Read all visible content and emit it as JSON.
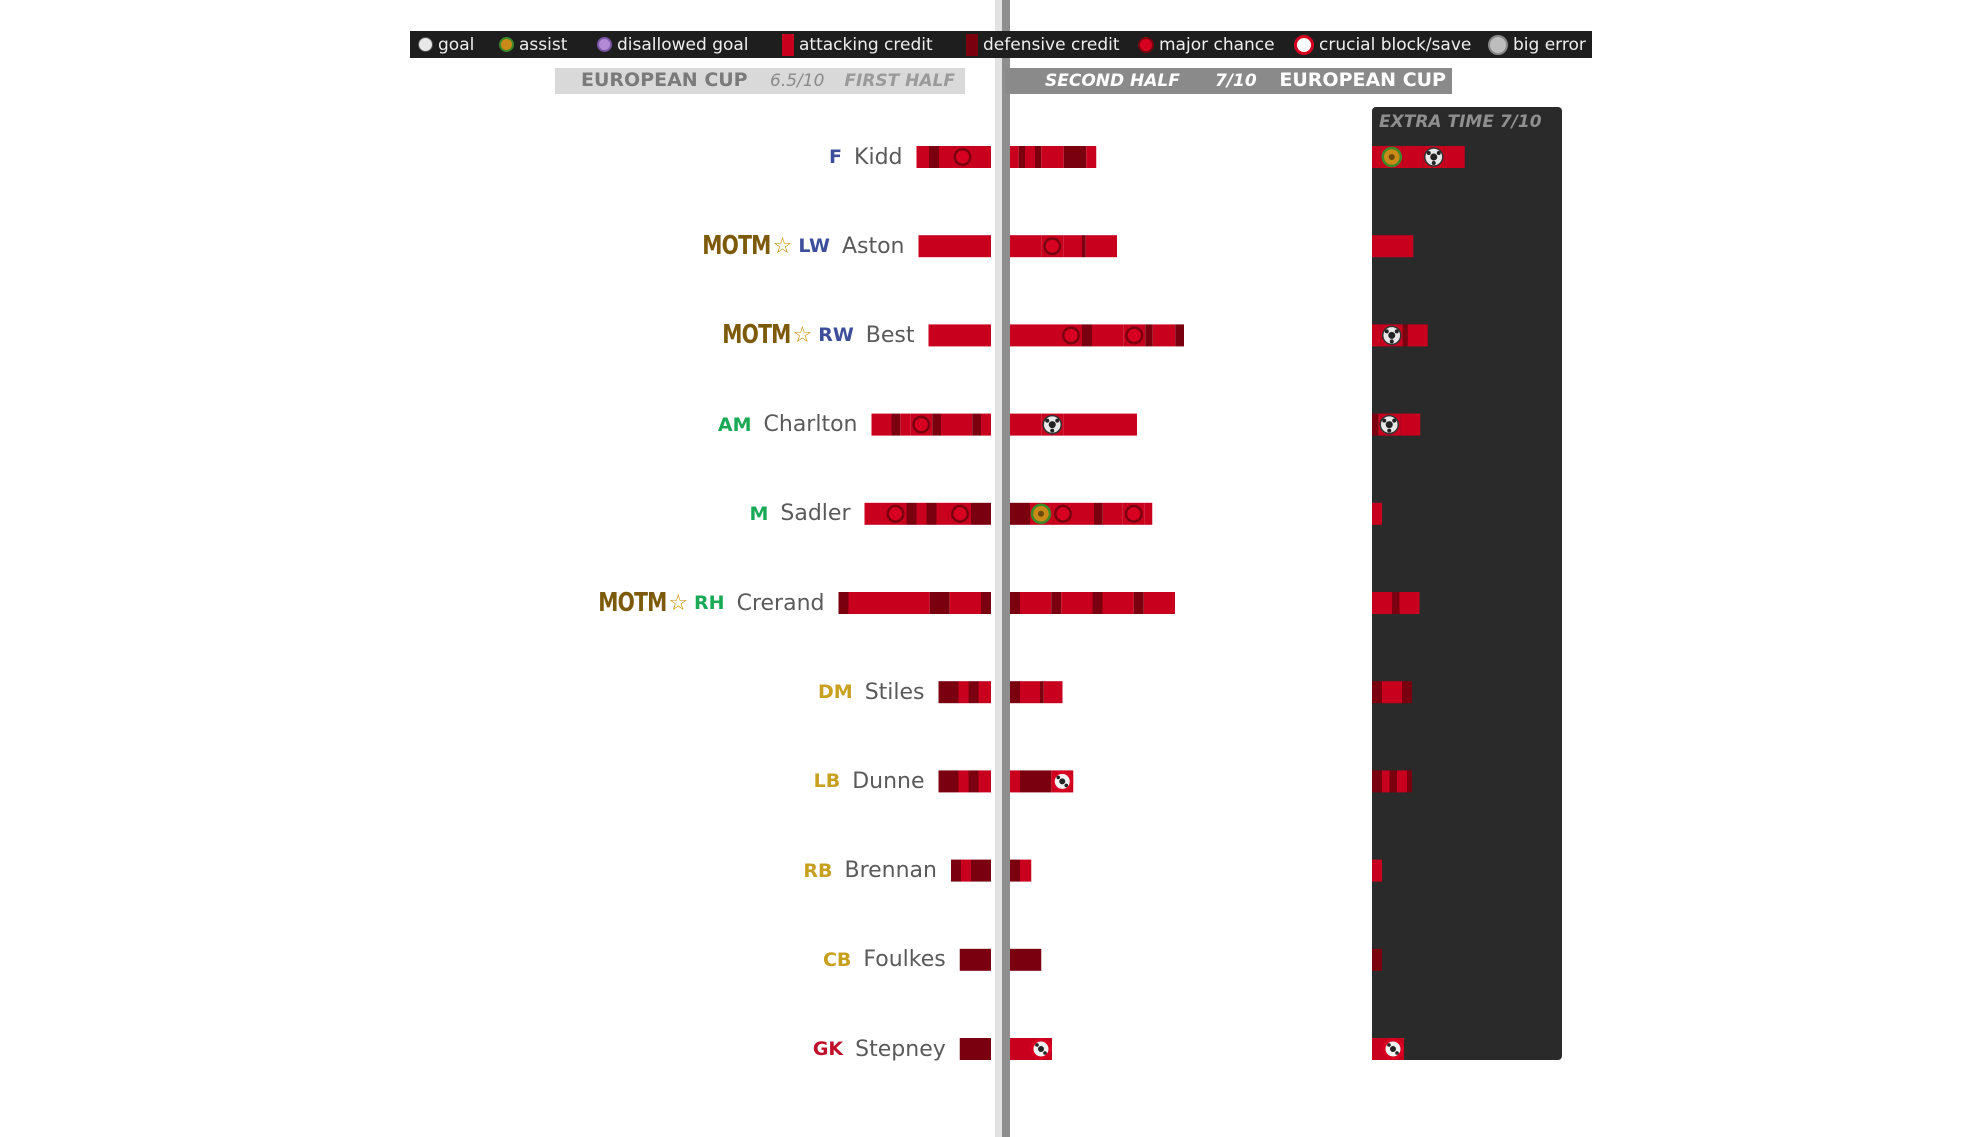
{
  "legend": [
    {
      "key": "goal",
      "label": "goal",
      "color": "#e8e8e8"
    },
    {
      "key": "assist",
      "label": "assist",
      "color": "#c98a18"
    },
    {
      "key": "disallowed",
      "label": "disallowed goal",
      "color": "#b28ad6"
    },
    {
      "key": "att",
      "label": "attacking credit",
      "color": "#c8001e"
    },
    {
      "key": "def",
      "label": "defensive credit",
      "color": "#7a0010"
    },
    {
      "key": "chance",
      "label": "major chance",
      "color": "#d80020"
    },
    {
      "key": "block",
      "label": "crucial block/save",
      "color": "#d80020"
    },
    {
      "key": "error",
      "label": "big error",
      "color": "#bdbdbd"
    }
  ],
  "header": {
    "left_competition": "EUROPEAN CUP",
    "left_rating": "6.5/10",
    "left_half": "FIRST HALF",
    "right_half": "SECOND HALF",
    "right_rating": "7/10",
    "right_competition": "EUROPEAN CUP",
    "extra_time": "EXTRA TIME 7/10"
  },
  "colors": {
    "attacking": "#c8001e",
    "defensive": "#7a0010",
    "forward_pos": "#3d4f9a",
    "midfield_pos": "#1aaa55",
    "defence_pos": "#c8a020",
    "gk_pos": "#c0102a",
    "motm": "#7d5a0a"
  },
  "chart_data": {
    "type": "bar",
    "motm_label": "MOTM",
    "players": [
      {
        "pos": "F",
        "name": "Kidd",
        "motm": false,
        "pos_color": "#3d4f9a",
        "first_half": [
          [
            "a",
            1.0
          ],
          [
            "d",
            0.8
          ],
          [
            "a",
            1.0
          ],
          [
            "chance"
          ],
          [
            "a",
            1.4
          ]
        ],
        "second_half": [
          [
            "a",
            0.7
          ],
          [
            "d",
            0.5
          ],
          [
            "a",
            0.8
          ],
          [
            "d",
            0.5
          ],
          [
            "a",
            1.8
          ],
          [
            "d",
            1.8
          ],
          [
            "a",
            0.8
          ]
        ],
        "extra_time": [
          [
            "a",
            0.7
          ],
          [
            "assist"
          ],
          [
            "a",
            1.6
          ],
          [
            "goal"
          ],
          [
            "a",
            1.6
          ]
        ]
      },
      {
        "pos": "LW",
        "name": "Aston",
        "motm": true,
        "pos_color": "#3d4f9a",
        "first_half": [
          [
            "a",
            5.8
          ]
        ],
        "second_half": [
          [
            "a",
            2.5
          ],
          [
            "chance"
          ],
          [
            "a",
            1.5
          ],
          [
            "d",
            0.3
          ],
          [
            "a",
            2.5
          ]
        ],
        "extra_time": [
          [
            "a",
            3.3
          ]
        ]
      },
      {
        "pos": "RW",
        "name": "Best",
        "motm": true,
        "pos_color": "#3d4f9a",
        "first_half": [
          [
            "a",
            5.0
          ]
        ],
        "second_half": [
          [
            "a",
            4.0
          ],
          [
            "chance"
          ],
          [
            "d",
            0.8
          ],
          [
            "a",
            2.5
          ],
          [
            "chance"
          ],
          [
            "d",
            0.6
          ],
          [
            "a",
            1.8
          ],
          [
            "d",
            0.7
          ]
        ],
        "extra_time": [
          [
            "a",
            0.7
          ],
          [
            "goal"
          ],
          [
            "d",
            0.4
          ],
          [
            "a",
            1.6
          ]
        ]
      },
      {
        "pos": "AM",
        "name": "Charlton",
        "motm": false,
        "pos_color": "#1aaa55",
        "first_half": [
          [
            "a",
            1.6
          ],
          [
            "d",
            0.7
          ],
          [
            "a",
            0.8
          ],
          [
            "chance"
          ],
          [
            "d",
            0.7
          ],
          [
            "a",
            2.5
          ],
          [
            "d",
            0.7
          ],
          [
            "a",
            0.8
          ]
        ],
        "second_half": [
          [
            "a",
            2.5
          ],
          [
            "goal"
          ],
          [
            "a",
            5.9
          ]
        ],
        "extra_time": [
          [
            "d",
            0.5
          ],
          [
            "goal"
          ],
          [
            "a",
            1.6
          ]
        ]
      },
      {
        "pos": "M",
        "name": "Sadler",
        "motm": false,
        "pos_color": "#1aaa55",
        "first_half": [
          [
            "a",
            1.6
          ],
          [
            "chance"
          ],
          [
            "d",
            0.8
          ],
          [
            "a",
            0.8
          ],
          [
            "d",
            0.8
          ],
          [
            "a",
            1.0
          ],
          [
            "chance"
          ],
          [
            "d",
            1.6
          ]
        ],
        "second_half": [
          [
            "d",
            1.6
          ],
          [
            "assist"
          ],
          [
            "chance"
          ],
          [
            "a",
            1.6
          ],
          [
            "d",
            0.7
          ],
          [
            "a",
            1.6
          ],
          [
            "chance"
          ],
          [
            "a",
            0.6
          ]
        ],
        "extra_time": [
          [
            "a",
            0.8
          ]
        ]
      },
      {
        "pos": "RH",
        "name": "Crerand",
        "motm": true,
        "pos_color": "#1aaa55",
        "first_half": [
          [
            "d",
            0.8
          ],
          [
            "a",
            6.5
          ],
          [
            "d",
            1.6
          ],
          [
            "a",
            2.5
          ],
          [
            "d",
            0.8
          ]
        ],
        "second_half": [
          [
            "d",
            0.8
          ],
          [
            "a",
            2.5
          ],
          [
            "d",
            0.8
          ],
          [
            "a",
            2.5
          ],
          [
            "d",
            0.8
          ],
          [
            "a",
            2.5
          ],
          [
            "d",
            0.8
          ],
          [
            "a",
            2.5
          ]
        ],
        "extra_time": [
          [
            "a",
            1.6
          ],
          [
            "d",
            0.6
          ],
          [
            "a",
            1.6
          ]
        ]
      },
      {
        "pos": "DM",
        "name": "Stiles",
        "motm": false,
        "pos_color": "#c8a020",
        "first_half": [
          [
            "d",
            1.6
          ],
          [
            "a",
            0.8
          ],
          [
            "d",
            0.8
          ],
          [
            "a",
            1.0
          ]
        ],
        "second_half": [
          [
            "d",
            0.8
          ],
          [
            "a",
            1.6
          ],
          [
            "d",
            0.3
          ],
          [
            "a",
            1.5
          ]
        ],
        "extra_time": [
          [
            "d",
            0.8
          ],
          [
            "a",
            1.6
          ],
          [
            "d",
            0.8
          ]
        ]
      },
      {
        "pos": "LB",
        "name": "Dunne",
        "motm": false,
        "pos_color": "#c8a020",
        "first_half": [
          [
            "d",
            1.6
          ],
          [
            "a",
            0.8
          ],
          [
            "d",
            0.8
          ],
          [
            "a",
            1.0
          ]
        ],
        "second_half": [
          [
            "a",
            0.8
          ],
          [
            "d",
            2.5
          ],
          [
            "block"
          ]
        ],
        "extra_time": [
          [
            "d",
            0.8
          ],
          [
            "a",
            0.6
          ],
          [
            "d",
            0.6
          ],
          [
            "a",
            0.8
          ],
          [
            "d",
            0.4
          ]
        ]
      },
      {
        "pos": "RB",
        "name": "Brennan",
        "motm": false,
        "pos_color": "#c8a020",
        "first_half": [
          [
            "d",
            0.8
          ],
          [
            "a",
            0.8
          ],
          [
            "d",
            1.6
          ]
        ],
        "second_half": [
          [
            "d",
            0.8
          ],
          [
            "a",
            0.9
          ]
        ],
        "extra_time": [
          [
            "a",
            0.8
          ]
        ]
      },
      {
        "pos": "CB",
        "name": "Foulkes",
        "motm": false,
        "pos_color": "#c8a020",
        "first_half": [
          [
            "d",
            2.5
          ]
        ],
        "second_half": [
          [
            "d",
            2.5
          ]
        ],
        "extra_time": [
          [
            "d",
            0.8
          ]
        ]
      },
      {
        "pos": "GK",
        "name": "Stepney",
        "motm": false,
        "pos_color": "#c0102a",
        "first_half": [
          [
            "d",
            2.5
          ]
        ],
        "second_half": [
          [
            "a",
            1.6
          ],
          [
            "block"
          ]
        ],
        "extra_time": [
          [
            "a",
            0.8
          ],
          [
            "block"
          ]
        ]
      }
    ]
  }
}
